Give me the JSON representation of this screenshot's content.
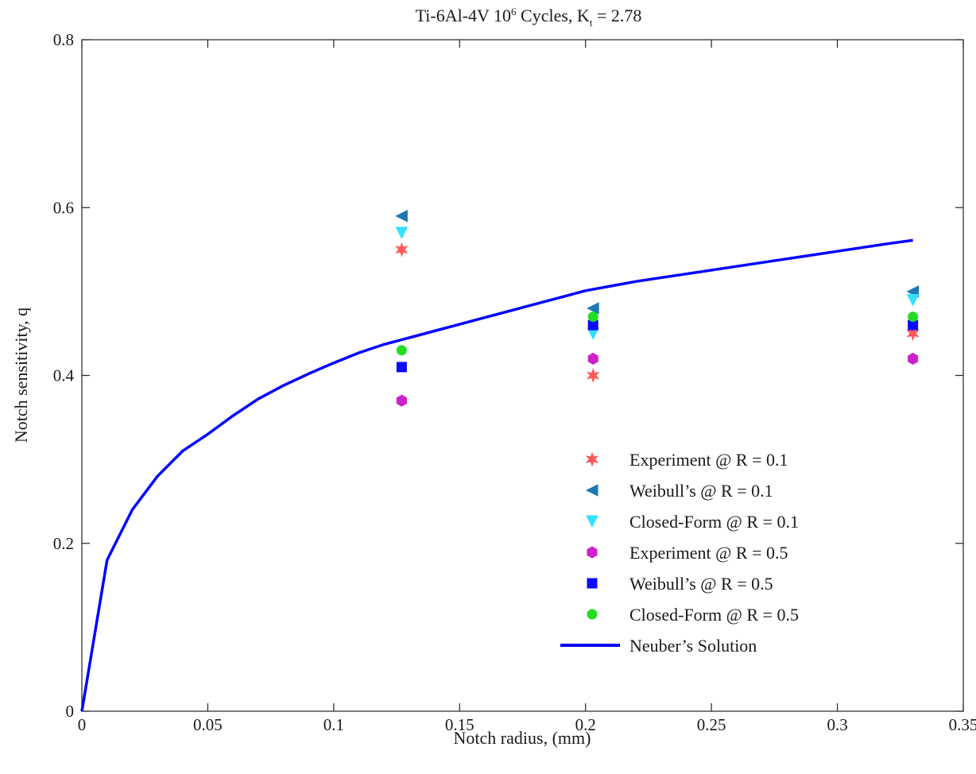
{
  "chart_data": {
    "type": "scatter",
    "title": {
      "prefix": "Ti-6Al-4V 10",
      "sup": "6",
      "middle": " Cycles, K",
      "sub": "t",
      "suffix": " = 2.78"
    },
    "xlabel": "Notch radius, (mm)",
    "ylabel": "Notch sensitivity, q",
    "xlim": [
      0,
      0.35
    ],
    "ylim": [
      0,
      0.8
    ],
    "xticks": [
      0,
      0.05,
      0.1,
      0.15,
      0.2,
      0.25,
      0.3,
      0.35
    ],
    "xtick_labels": [
      "0",
      "0.05",
      "0.1",
      "0.15",
      "0.2",
      "0.25",
      "0.3",
      "0.35"
    ],
    "yticks": [
      0,
      0.2,
      0.4,
      0.6,
      0.8
    ],
    "ytick_labels": [
      "0",
      "0.2",
      "0.4",
      "0.6",
      "0.8"
    ],
    "grid": false,
    "legend_position": "bottom-right",
    "series": [
      {
        "name": "Experiment @ R = 0.1",
        "marker": "hexagram",
        "color": "#ff5a5a",
        "x": [
          0.127,
          0.203,
          0.33
        ],
        "y": [
          0.55,
          0.4,
          0.45
        ]
      },
      {
        "name": "Weibull’s @ R = 0.1",
        "marker": "triangle-left",
        "color": "#1f78b4",
        "x": [
          0.127,
          0.203,
          0.33
        ],
        "y": [
          0.59,
          0.48,
          0.5
        ]
      },
      {
        "name": "Closed-Form @ R = 0.1",
        "marker": "triangle-down",
        "color": "#33e0ff",
        "x": [
          0.127,
          0.203,
          0.33
        ],
        "y": [
          0.57,
          0.45,
          0.49
        ]
      },
      {
        "name": "Experiment @ R = 0.5",
        "marker": "hexagon",
        "color": "#cc22cc",
        "x": [
          0.127,
          0.203,
          0.33
        ],
        "y": [
          0.37,
          0.42,
          0.42
        ]
      },
      {
        "name": "Weibull’s @ R = 0.5",
        "marker": "square",
        "color": "#0a0aff",
        "x": [
          0.127,
          0.203,
          0.33
        ],
        "y": [
          0.41,
          0.46,
          0.46
        ]
      },
      {
        "name": "Closed-Form @ R = 0.5",
        "marker": "circle",
        "color": "#22dd22",
        "x": [
          0.127,
          0.203,
          0.33
        ],
        "y": [
          0.43,
          0.47,
          0.47
        ]
      }
    ],
    "line_series": {
      "name": "Neuber’s Solution",
      "color": "#0000ff",
      "x": [
        0,
        0.01,
        0.02,
        0.03,
        0.04,
        0.05,
        0.06,
        0.07,
        0.08,
        0.09,
        0.1,
        0.11,
        0.12,
        0.13,
        0.14,
        0.15,
        0.16,
        0.17,
        0.18,
        0.19,
        0.2,
        0.22,
        0.24,
        0.26,
        0.28,
        0.3,
        0.32,
        0.33
      ],
      "y": [
        0,
        0.18,
        0.24,
        0.28,
        0.31,
        0.33,
        0.352,
        0.372,
        0.388,
        0.402,
        0.415,
        0.427,
        0.437,
        0.445,
        0.453,
        0.461,
        0.469,
        0.477,
        0.485,
        0.493,
        0.501,
        0.512,
        0.521,
        0.53,
        0.539,
        0.548,
        0.557,
        0.561
      ]
    }
  }
}
